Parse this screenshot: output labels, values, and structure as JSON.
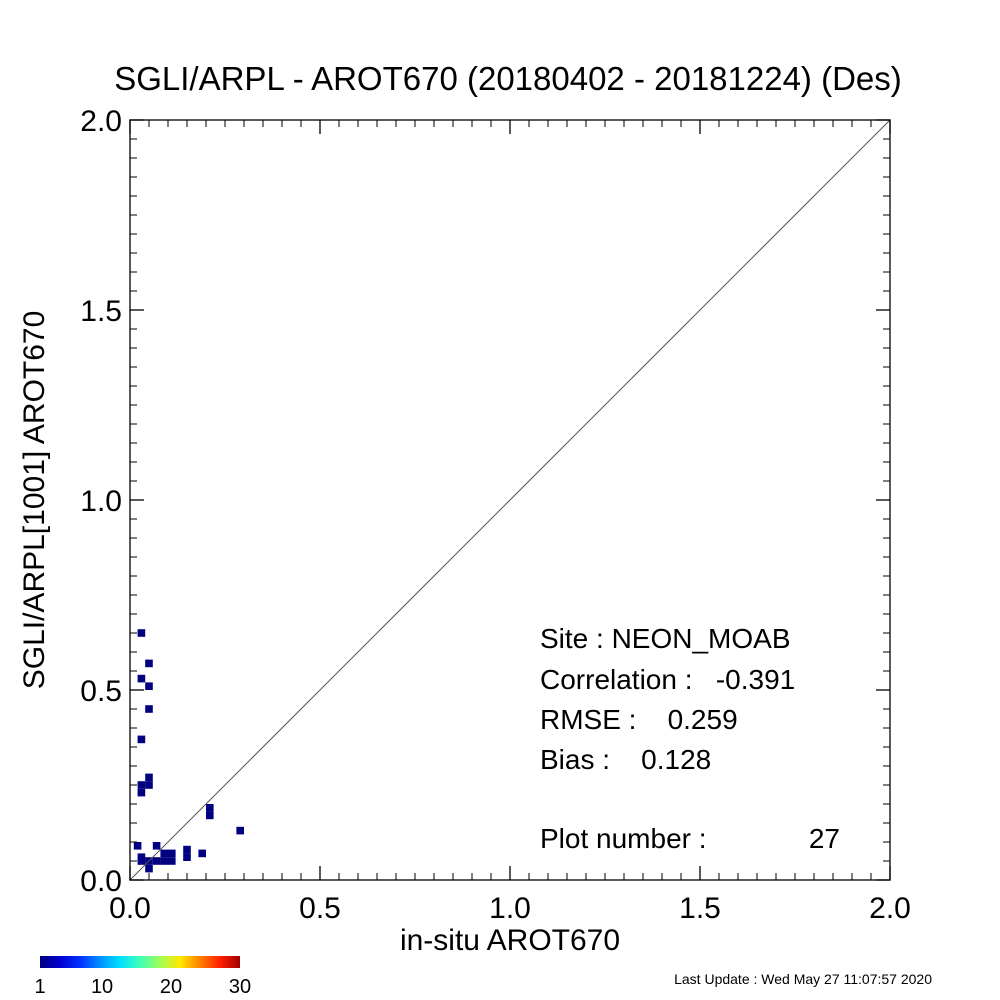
{
  "chart_data": {
    "type": "heatmap",
    "title": "SGLI/ARPL - AROT670 (20180402 - 20181224) (Des)",
    "xlabel": "in-situ AROT670",
    "ylabel": "SGLI/ARPL[1001]    AROT670",
    "xlim": [
      0.0,
      2.0
    ],
    "ylim": [
      0.0,
      2.0
    ],
    "x_ticks": [
      "0.0",
      "0.5",
      "1.0",
      "1.5",
      "2.0"
    ],
    "y_ticks": [
      "0.0",
      "0.5",
      "1.0",
      "1.5",
      "2.0"
    ],
    "grid": false,
    "reference_line": "1:1",
    "bin_size": 0.02,
    "point_color": "#000080",
    "points": [
      {
        "x": 0.02,
        "y": 0.09,
        "count": 1
      },
      {
        "x": 0.03,
        "y": 0.06,
        "count": 1
      },
      {
        "x": 0.03,
        "y": 0.05,
        "count": 1
      },
      {
        "x": 0.05,
        "y": 0.03,
        "count": 1
      },
      {
        "x": 0.07,
        "y": 0.09,
        "count": 1
      },
      {
        "x": 0.07,
        "y": 0.05,
        "count": 1
      },
      {
        "x": 0.09,
        "y": 0.07,
        "count": 1
      },
      {
        "x": 0.11,
        "y": 0.07,
        "count": 1
      },
      {
        "x": 0.11,
        "y": 0.05,
        "count": 1
      },
      {
        "x": 0.15,
        "y": 0.08,
        "count": 1
      },
      {
        "x": 0.15,
        "y": 0.06,
        "count": 1
      },
      {
        "x": 0.19,
        "y": 0.07,
        "count": 1
      },
      {
        "x": 0.21,
        "y": 0.19,
        "count": 1
      },
      {
        "x": 0.21,
        "y": 0.17,
        "count": 1
      },
      {
        "x": 0.29,
        "y": 0.13,
        "count": 1
      },
      {
        "x": 0.03,
        "y": 0.65,
        "count": 1
      },
      {
        "x": 0.05,
        "y": 0.57,
        "count": 1
      },
      {
        "x": 0.03,
        "y": 0.53,
        "count": 1
      },
      {
        "x": 0.05,
        "y": 0.51,
        "count": 1
      },
      {
        "x": 0.05,
        "y": 0.45,
        "count": 1
      },
      {
        "x": 0.03,
        "y": 0.37,
        "count": 1
      },
      {
        "x": 0.05,
        "y": 0.27,
        "count": 1
      },
      {
        "x": 0.03,
        "y": 0.25,
        "count": 1
      },
      {
        "x": 0.05,
        "y": 0.25,
        "count": 1
      },
      {
        "x": 0.03,
        "y": 0.23,
        "count": 1
      },
      {
        "x": 0.09,
        "y": 0.05,
        "count": 1
      },
      {
        "x": 0.05,
        "y": 0.05,
        "count": 1
      }
    ],
    "annotations": {
      "site": "Site : NEON_MOAB",
      "correlation": "Correlation :   -0.391",
      "rmse": "RMSE :    0.259",
      "bias": "Bias :    0.128",
      "plot_number_label": "Plot number :",
      "plot_number_value": "27"
    },
    "colorbar": {
      "colors": [
        "#00007f",
        "#0000d0",
        "#0030ff",
        "#0090ff",
        "#00e0ff",
        "#40ffb8",
        "#a0ff58",
        "#ffe800",
        "#ff8000",
        "#ff2000",
        "#a00000"
      ],
      "tick_labels": [
        "1",
        "10",
        "20",
        "30"
      ],
      "tick_values": [
        1,
        10,
        20,
        30
      ],
      "range": [
        1,
        30
      ]
    }
  },
  "footer": {
    "last_update": "Last Update : Wed May 27 11:07:57 2020"
  }
}
